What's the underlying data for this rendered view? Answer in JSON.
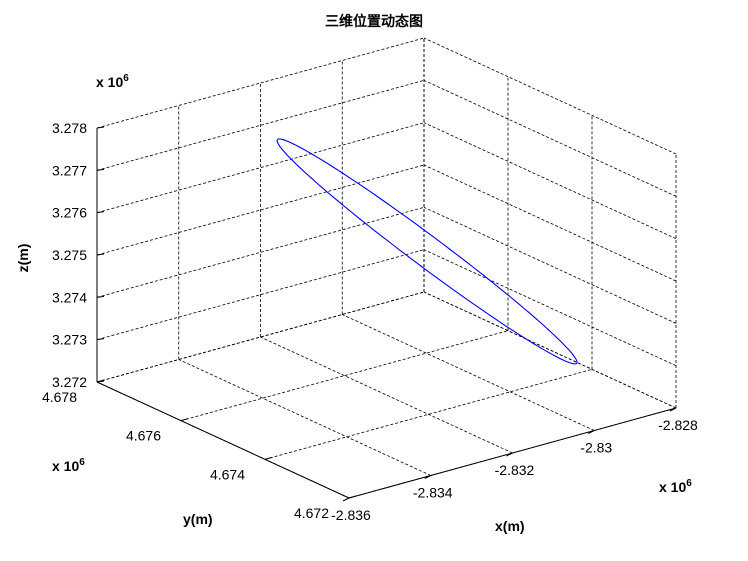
{
  "chart_data": {
    "type": "line3d",
    "title": "三维位置动态图",
    "xlabel": "x(m)",
    "ylabel": "y(m)",
    "zlabel": "z(m)",
    "x_scale_label": "x 10",
    "x_scale_exp": "6",
    "y_scale_label": "x 10",
    "y_scale_exp": "6",
    "z_scale_label": "x 10",
    "z_scale_exp": "6",
    "xlim": [
      -2.836,
      -2.828
    ],
    "ylim": [
      4.672,
      4.678
    ],
    "zlim": [
      3.272,
      3.278
    ],
    "x_ticks": [
      "-2.836",
      "-2.834",
      "-2.832",
      "-2.83",
      "-2.828"
    ],
    "y_ticks": [
      "4.672",
      "4.674",
      "4.676",
      "4.678"
    ],
    "z_ticks": [
      "3.272",
      "3.273",
      "3.274",
      "3.275",
      "3.276",
      "3.277",
      "3.278"
    ],
    "grid": true,
    "color": "#0000ff",
    "series": [
      {
        "type": "closed-ellipse-3d",
        "center": {
          "x": -2.8307,
          "y": 4.6753,
          "z": 3.27491
        },
        "half_major": {
          "x": -0.0019,
          "y": 0.0017,
          "z": 0.00238
        },
        "half_minor": {
          "x": -0.0002,
          "y": 0.0002,
          "z": 0.0002
        }
      }
    ]
  }
}
